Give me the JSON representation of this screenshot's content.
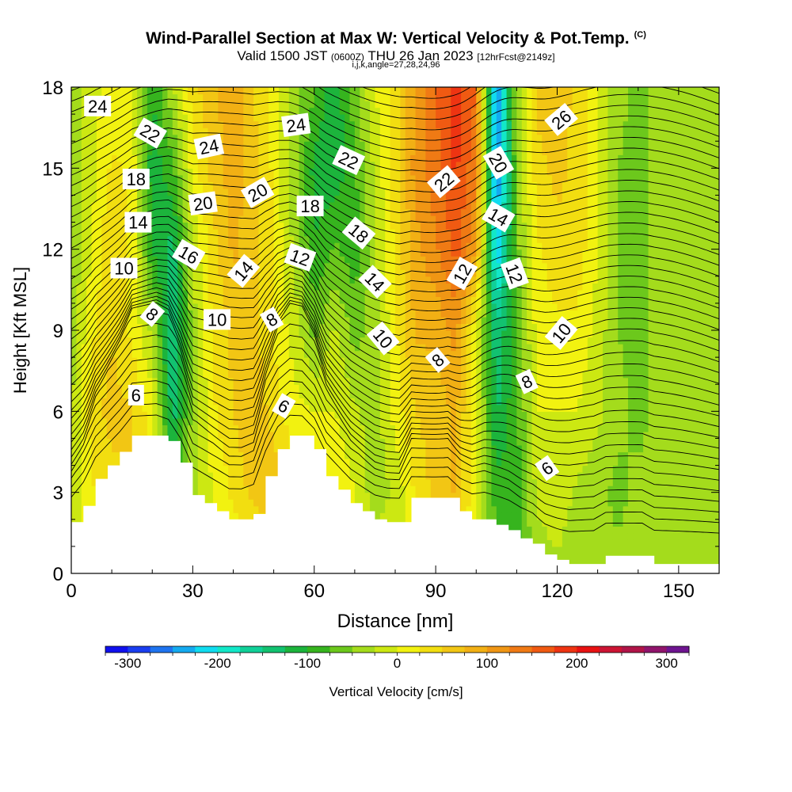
{
  "chart_data": {
    "type": "contour",
    "title": "Wind-Parallel Section at Max W: Vertical Velocity & Pot.Temp.",
    "title_mark": "(C)",
    "subtitle_prefix": "Valid 1500 JST",
    "subtitle_z": "(0600Z)",
    "subtitle_date": "THU 26 Jan 2023",
    "subtitle_fcst": "[12hrFcst@2149z]",
    "subtitle2": "i,j,k,angle=27,28,24,96",
    "xlabel": "Distance [nm]",
    "ylabel": "Height [Kft MSL]",
    "xlim": [
      0,
      160
    ],
    "ylim": [
      0,
      18
    ],
    "xticks": [
      0,
      30,
      60,
      90,
      120,
      150
    ],
    "yticks": [
      0,
      3,
      6,
      9,
      12,
      15,
      18
    ],
    "colorbar": {
      "label": "Vertical Velocity [cm/s]",
      "ticks": [
        -300,
        -200,
        -100,
        0,
        100,
        200,
        300
      ],
      "range": [
        -325,
        325
      ],
      "colors": [
        "#1010ee",
        "#1a3ef0",
        "#1f74f0",
        "#14aaf0",
        "#10dcf0",
        "#12e8c8",
        "#10d098",
        "#12c270",
        "#1cb43c",
        "#36b41e",
        "#6cc81c",
        "#a4dc1c",
        "#cce812",
        "#f2f210",
        "#f2de10",
        "#f2c614",
        "#f2b014",
        "#f09614",
        "#f07a14",
        "#f05a12",
        "#ee3412",
        "#e81212",
        "#cc1434",
        "#b01448",
        "#90146c",
        "#6e1490"
      ]
    },
    "isentropes_K": [
      6,
      8,
      10,
      12,
      14,
      16,
      18,
      20,
      22,
      24,
      26
    ],
    "theta_labels": [
      {
        "text": "24",
        "x": 6.5,
        "y": 17.3,
        "angle": 0
      },
      {
        "text": "22",
        "x": 19.5,
        "y": 16.3,
        "angle": 30
      },
      {
        "text": "24",
        "x": 34,
        "y": 15.8,
        "angle": -12
      },
      {
        "text": "24",
        "x": 55.5,
        "y": 16.6,
        "angle": -8
      },
      {
        "text": "22",
        "x": 68.5,
        "y": 15.3,
        "angle": 25
      },
      {
        "text": "26",
        "x": 121,
        "y": 16.8,
        "angle": -40
      },
      {
        "text": "18",
        "x": 16,
        "y": 14.6,
        "angle": 0
      },
      {
        "text": "20",
        "x": 32.5,
        "y": 13.7,
        "angle": -8
      },
      {
        "text": "20",
        "x": 46,
        "y": 14.1,
        "angle": -30
      },
      {
        "text": "18",
        "x": 59,
        "y": 13.6,
        "angle": 0
      },
      {
        "text": "18",
        "x": 71,
        "y": 12.6,
        "angle": 40
      },
      {
        "text": "22",
        "x": 92,
        "y": 14.5,
        "angle": -40
      },
      {
        "text": "20",
        "x": 105.5,
        "y": 15.2,
        "angle": 60
      },
      {
        "text": "14",
        "x": 16.5,
        "y": 13,
        "angle": 0
      },
      {
        "text": "16",
        "x": 29,
        "y": 11.8,
        "angle": 30
      },
      {
        "text": "14",
        "x": 42.5,
        "y": 11.2,
        "angle": -50
      },
      {
        "text": "12",
        "x": 56.5,
        "y": 11.7,
        "angle": 20
      },
      {
        "text": "14",
        "x": 75,
        "y": 10.8,
        "angle": 45
      },
      {
        "text": "14",
        "x": 105.5,
        "y": 13.2,
        "angle": 30
      },
      {
        "text": "12",
        "x": 96.5,
        "y": 11.1,
        "angle": -60
      },
      {
        "text": "12",
        "x": 109.5,
        "y": 11.1,
        "angle": 70
      },
      {
        "text": "10",
        "x": 13,
        "y": 11.3,
        "angle": 0
      },
      {
        "text": "8",
        "x": 20,
        "y": 9.6,
        "angle": 40
      },
      {
        "text": "10",
        "x": 36,
        "y": 9.4,
        "angle": 0
      },
      {
        "text": "8",
        "x": 49.5,
        "y": 9.4,
        "angle": -30
      },
      {
        "text": "10",
        "x": 77,
        "y": 8.7,
        "angle": 50
      },
      {
        "text": "8",
        "x": 90.5,
        "y": 7.9,
        "angle": -40
      },
      {
        "text": "10",
        "x": 121,
        "y": 8.9,
        "angle": -50
      },
      {
        "text": "8",
        "x": 112.5,
        "y": 7.1,
        "angle": -25
      },
      {
        "text": "6",
        "x": 16,
        "y": 6.6,
        "angle": 0
      },
      {
        "text": "6",
        "x": 52.5,
        "y": 6.2,
        "angle": 30
      },
      {
        "text": "6",
        "x": 117.5,
        "y": 3.9,
        "angle": -35
      }
    ],
    "terrain": {
      "x": [
        0,
        3,
        6,
        9,
        12,
        15,
        18,
        21,
        24,
        27,
        30,
        33,
        36,
        39,
        42,
        45,
        48,
        51,
        54,
        57,
        60,
        63,
        66,
        69,
        72,
        75,
        78,
        81,
        84,
        87,
        90,
        93,
        96,
        99,
        102,
        105,
        108,
        111,
        114,
        117,
        120,
        123,
        126,
        129,
        132,
        135,
        138,
        141,
        144,
        147,
        150,
        153,
        156,
        160
      ],
      "height_kft": [
        1.9,
        2.5,
        3.5,
        4.0,
        4.5,
        5.1,
        5.1,
        5.1,
        4.9,
        4.1,
        2.9,
        2.6,
        2.3,
        2.0,
        2.0,
        2.2,
        3.6,
        4.6,
        5.1,
        5.1,
        4.6,
        3.6,
        3.1,
        2.6,
        2.3,
        2.0,
        1.9,
        1.9,
        2.8,
        2.8,
        2.8,
        2.8,
        2.3,
        2.0,
        2.0,
        1.8,
        1.6,
        1.3,
        1.1,
        0.7,
        0.5,
        0.35,
        0.35,
        0.35,
        0.65,
        0.65,
        0.65,
        0.65,
        0.35,
        0.35,
        0.35,
        0.35,
        0.35,
        0.35
      ]
    },
    "w_field_cm_s": {
      "x": [
        0,
        5,
        10,
        15,
        20,
        25,
        30,
        35,
        40,
        45,
        50,
        55,
        60,
        65,
        70,
        75,
        80,
        85,
        90,
        95,
        100,
        105,
        110,
        115,
        120,
        125,
        130,
        135,
        140,
        145,
        150,
        155,
        160
      ],
      "y": [
        0,
        3,
        6,
        9,
        12,
        15,
        18
      ],
      "values": [
        [
          0,
          0,
          0,
          0,
          0,
          0,
          0,
          0,
          0,
          0,
          0,
          0,
          0,
          0,
          0,
          0,
          0,
          -10,
          -10,
          -10,
          0,
          -60,
          -80,
          -40,
          -30,
          -50,
          -40,
          -40,
          -40,
          -40,
          -40,
          -40,
          -40
        ],
        [
          -30,
          20,
          40,
          50,
          30,
          -80,
          -30,
          0,
          30,
          60,
          70,
          30,
          10,
          20,
          0,
          -40,
          -20,
          30,
          60,
          80,
          0,
          -90,
          -90,
          -20,
          -10,
          -30,
          -40,
          -60,
          -40,
          -50,
          -40,
          -30,
          -40
        ],
        [
          -30,
          40,
          60,
          50,
          10,
          -140,
          -40,
          20,
          50,
          70,
          40,
          10,
          0,
          0,
          -20,
          -40,
          10,
          50,
          60,
          80,
          0,
          -130,
          -80,
          0,
          0,
          0,
          -20,
          -40,
          -60,
          -40,
          -40,
          -30,
          -50
        ],
        [
          -40,
          20,
          50,
          20,
          -30,
          -160,
          -40,
          30,
          60,
          60,
          20,
          -10,
          -60,
          -20,
          -60,
          -40,
          20,
          80,
          80,
          110,
          0,
          -150,
          -80,
          10,
          20,
          20,
          -10,
          -50,
          -60,
          -40,
          -40,
          -30,
          -50
        ],
        [
          -50,
          0,
          50,
          20,
          -100,
          -140,
          -20,
          40,
          80,
          60,
          20,
          -30,
          -100,
          -70,
          -90,
          -30,
          30,
          90,
          120,
          160,
          100,
          -230,
          -60,
          20,
          40,
          40,
          0,
          -50,
          -60,
          -40,
          -40,
          -30,
          -50
        ],
        [
          -50,
          -10,
          30,
          20,
          -120,
          -80,
          10,
          60,
          90,
          60,
          20,
          -40,
          -110,
          -120,
          -80,
          -20,
          40,
          110,
          140,
          180,
          130,
          -260,
          -50,
          40,
          60,
          40,
          0,
          -50,
          -60,
          -40,
          -40,
          -30,
          -50
        ],
        [
          -40,
          -10,
          10,
          0,
          -100,
          -30,
          40,
          70,
          90,
          50,
          20,
          -40,
          -70,
          -120,
          -60,
          0,
          40,
          100,
          150,
          190,
          150,
          -260,
          -40,
          60,
          70,
          40,
          0,
          -40,
          -60,
          -40,
          -40,
          -30,
          -50
        ]
      ]
    }
  }
}
